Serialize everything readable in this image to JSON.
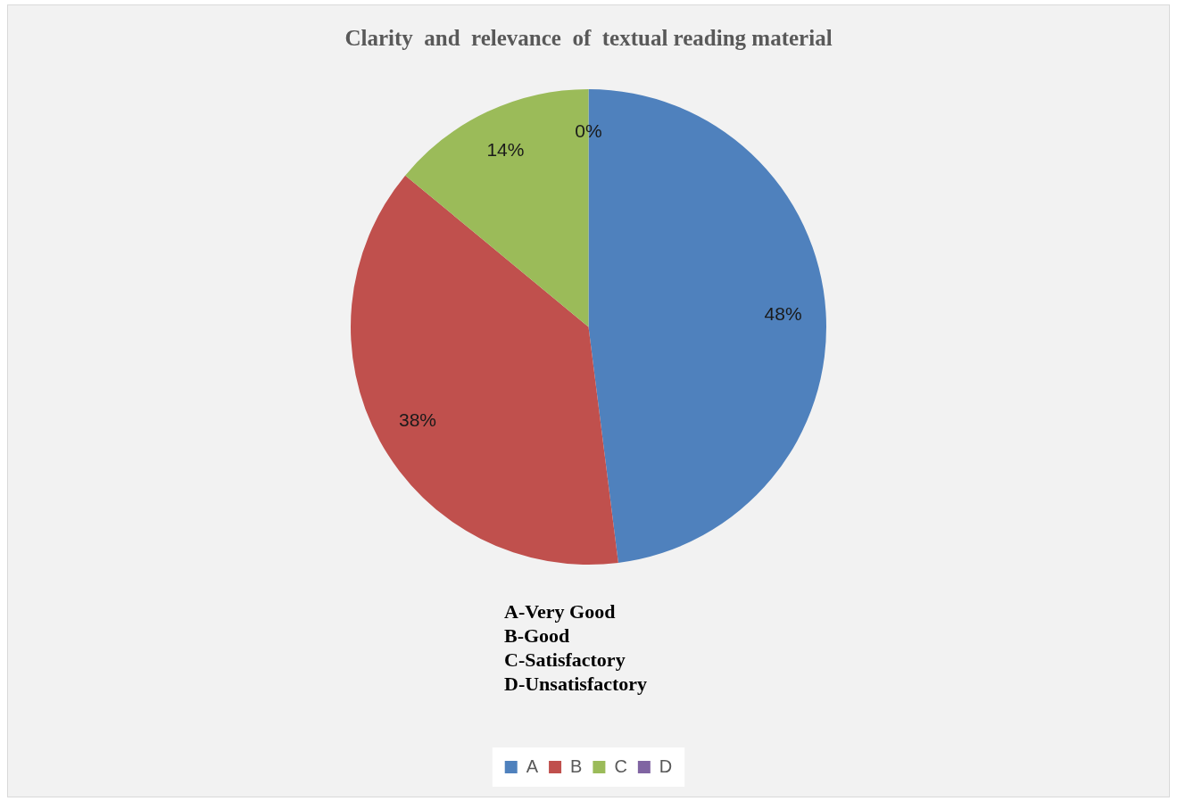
{
  "chart_data": {
    "type": "pie",
    "title": "Clarity  and  relevance  of  textual reading material",
    "categories": [
      "A",
      "B",
      "C",
      "D"
    ],
    "values": [
      48,
      38,
      14,
      0
    ],
    "colors": [
      "#4f81bd",
      "#c0504d",
      "#9bbb59",
      "#8064a2"
    ],
    "value_labels": [
      "48%",
      "38%",
      "14%",
      "0%"
    ],
    "annotations": [
      "A-Very Good",
      "B-Good",
      "C-Satisfactory",
      "D-Unsatisfactory"
    ],
    "legend": "bottom"
  }
}
